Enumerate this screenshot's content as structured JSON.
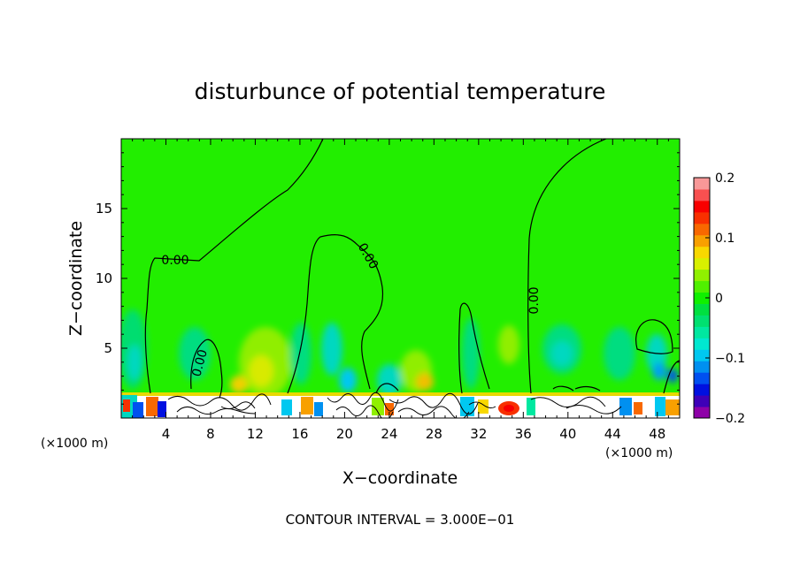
{
  "chart_data": {
    "type": "heatmap",
    "title": "disturbunce of potential temperature",
    "xlabel": "X−coordinate",
    "ylabel": "Z−coordinate",
    "x_unit_left": "(×1000 m)",
    "x_unit_right": "(×1000 m)",
    "xlim": [
      0,
      50
    ],
    "ylim": [
      0,
      20
    ],
    "x_ticks": [
      4,
      8,
      12,
      16,
      20,
      24,
      28,
      32,
      36,
      40,
      44,
      48
    ],
    "y_ticks": [
      5,
      10,
      15
    ],
    "colorbar": {
      "min": -0.2,
      "max": 0.2,
      "ticks": [
        {
          "value": 0.2,
          "label": "0.2"
        },
        {
          "value": 0.1,
          "label": "0.1"
        },
        {
          "value": 0,
          "label": "0"
        },
        {
          "value": -0.1,
          "label": "−0.1"
        },
        {
          "value": -0.2,
          "label": "−0.2"
        }
      ],
      "colors": [
        "#8e00a8",
        "#3e00b8",
        "#0010e0",
        "#0050f0",
        "#0090f0",
        "#00c8f0",
        "#00e8d0",
        "#00e8a0",
        "#00e070",
        "#00e040",
        "#10f000",
        "#50f000",
        "#90f000",
        "#d8f000",
        "#f8d800",
        "#f8a000",
        "#f86800",
        "#f83000",
        "#f80000",
        "#f85050",
        "#f89898"
      ]
    },
    "contour_labels": [
      "0.00",
      "0.00",
      "0.00",
      "0.00"
    ],
    "contour_interval_text": "CONTOUR INTERVAL = 3.000E−01"
  }
}
